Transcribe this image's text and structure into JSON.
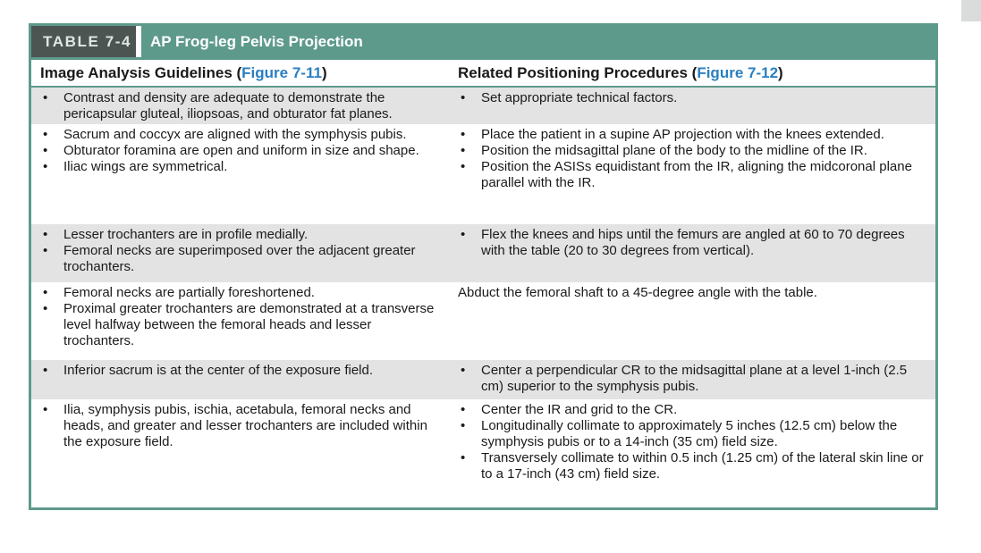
{
  "title": {
    "number": "TABLE 7-4",
    "text": "AP Frog-leg Pelvis Projection"
  },
  "headers": {
    "left_prefix": "Image Analysis Guidelines (",
    "left_link": "Figure 7-11",
    "left_suffix": ")",
    "right_prefix": "Related Positioning Procedures (",
    "right_link": "Figure 7-12",
    "right_suffix": ")"
  },
  "bullet_symbol": "•",
  "rows": [
    {
      "left": [
        "Contrast and density are adequate to demonstrate the pericapsular gluteal, iliopsoas, and obturator fat planes."
      ],
      "right": [
        "Set appropriate technical factors."
      ]
    },
    {
      "left": [
        "Sacrum and coccyx are aligned with the symphysis pubis.",
        "Obturator foramina are open and uniform in size and shape.",
        "Iliac wings are symmetrical."
      ],
      "right": [
        "Place the patient in a supine AP projection with the knees extended.",
        "Position the midsagittal plane of the body to the midline of the IR.",
        "Position the ASISs equidistant from the IR, aligning the midcoronal plane parallel with the IR."
      ]
    },
    {
      "left": [
        "Lesser trochanters are in profile medially.",
        "Femoral necks are superimposed over the adjacent greater trochanters."
      ],
      "right": [
        "Flex the knees and hips until the femurs are angled at 60 to 70 degrees with the table (20 to 30 degrees from vertical)."
      ]
    },
    {
      "left": [
        "Femoral necks are partially foreshortened.",
        "Proximal greater trochanters are demonstrated at a transverse level halfway between the femoral heads and lesser trochanters."
      ],
      "right_plain": "Abduct the femoral shaft to a 45-degree angle with the table."
    },
    {
      "left": [
        "Inferior sacrum is at the center of the exposure field."
      ],
      "right": [
        "Center a perpendicular CR to the midsagittal plane at a level 1-inch (2.5 cm) superior to the symphysis pubis."
      ]
    },
    {
      "left": [
        "Ilia, symphysis pubis, ischia, acetabula, femoral necks and heads, and greater and lesser trochanters are included within the exposure field."
      ],
      "right": [
        "Center the IR and grid to the CR.",
        "Longitudinally collimate to approximately 5 inches (12.5 cm) below the symphysis pubis or to a 14-inch (35 cm) field size.",
        "Transversely collimate to within 0.5 inch (1.25 cm) of the lateral skin line or to a 17-inch (43 cm) field size."
      ]
    }
  ]
}
